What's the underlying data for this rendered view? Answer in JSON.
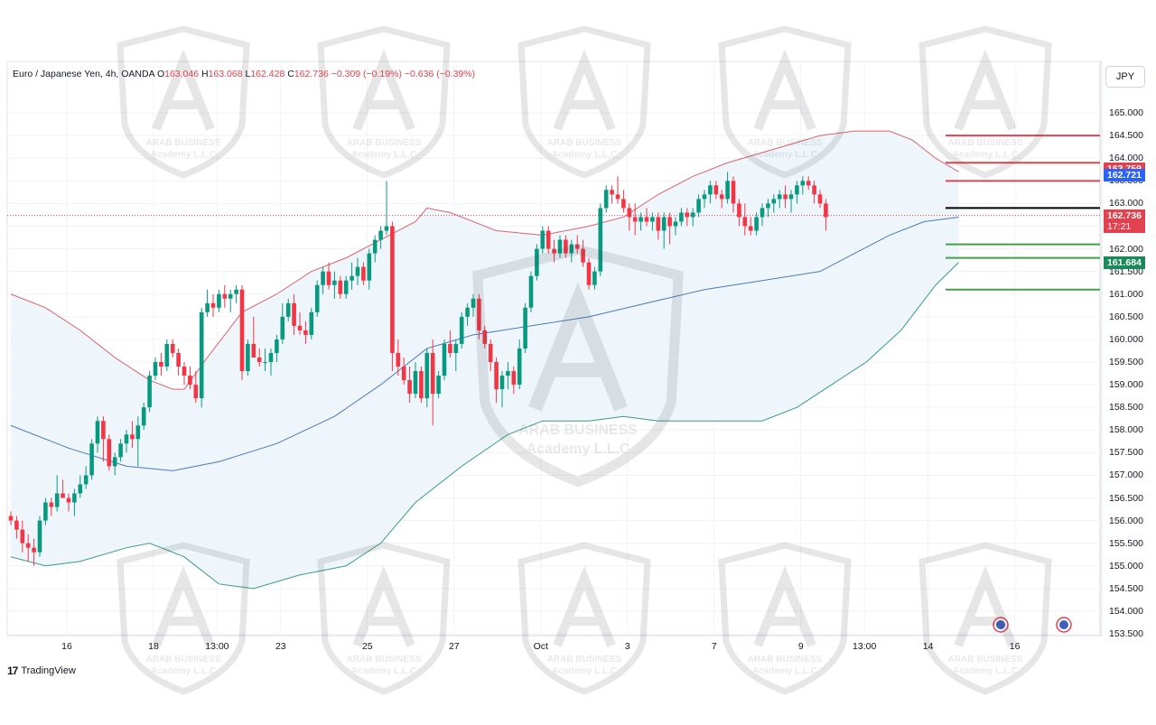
{
  "legend": {
    "symbol": "Euro / Japanese Yen, 4h, OANDA",
    "open_label": "O",
    "open": "163.046",
    "high_label": "H",
    "high": "163.068",
    "low_label": "L",
    "low": "162.428",
    "close_label": "C",
    "close": "162.736",
    "change": "−0.309 (−0.19%)",
    "change2": "−0.636 (−0.39%)"
  },
  "currency": "JPY",
  "watermark": {
    "line1": "ARAB BUSINESS",
    "line2": "Academy L.L.C"
  },
  "footer": {
    "brand": "TradingView",
    "brand_mark": "17"
  },
  "price_tags": {
    "resistance": {
      "value": "163.759",
      "color": "#e0434f"
    },
    "current": {
      "value": "162.736",
      "countdown": "17:21",
      "color": "#e0434f"
    },
    "middle_band": {
      "value": "162.721",
      "color": "#2962ff"
    },
    "support": {
      "value": "161.684",
      "color": "#1b8a5a"
    }
  },
  "colors": {
    "up": "#089981",
    "down": "#f23645",
    "upper_band": "#d9626d",
    "middle_band": "#4a78c2",
    "lower_band": "#3a9a86",
    "band_fill": "#eef6fc",
    "red_level": "#e0434f",
    "green_level": "#43a047",
    "black_level": "#000000"
  },
  "chart_data": {
    "type": "candlestick",
    "title": "Euro / Japanese Yen, 4h, OANDA",
    "ylabel": "JPY",
    "ylim": [
      153.5,
      165.5
    ],
    "y_ticks": [
      "165.000",
      "164.500",
      "164.000",
      "163.500",
      "163.000",
      "162.500",
      "162.000",
      "161.500",
      "161.000",
      "160.500",
      "160.000",
      "159.500",
      "159.000",
      "158.500",
      "158.000",
      "157.500",
      "157.000",
      "156.500",
      "156.000",
      "155.500",
      "155.000",
      "154.500",
      "154.000",
      "153.500"
    ],
    "x_ticks": [
      {
        "label": "16",
        "i": 5
      },
      {
        "label": "18",
        "i": 20
      },
      {
        "label": "13:00",
        "i": 31
      },
      {
        "label": "23",
        "i": 42
      },
      {
        "label": "25",
        "i": 57
      },
      {
        "label": "27",
        "i": 72
      },
      {
        "label": "Oct",
        "i": 87
      },
      {
        "label": "3",
        "i": 102
      },
      {
        "label": "7",
        "i": 117
      },
      {
        "label": "9",
        "i": 132
      },
      {
        "label": "13:00",
        "i": 143
      },
      {
        "label": "14",
        "i": 154
      },
      {
        "label": "16",
        "i": 169
      }
    ],
    "candles": [
      [
        156.1,
        156.2,
        155.9,
        156.0
      ],
      [
        156.0,
        156.1,
        155.6,
        155.8
      ],
      [
        155.8,
        156.0,
        155.3,
        155.5
      ],
      [
        155.5,
        155.7,
        155.1,
        155.4
      ],
      [
        155.4,
        155.6,
        155.0,
        155.3
      ],
      [
        155.3,
        156.1,
        155.2,
        156.0
      ],
      [
        156.0,
        156.5,
        155.9,
        156.4
      ],
      [
        156.4,
        156.5,
        156.1,
        156.3
      ],
      [
        156.3,
        157.0,
        156.2,
        156.6
      ],
      [
        156.6,
        156.9,
        156.5,
        156.5
      ],
      [
        156.5,
        156.6,
        156.2,
        156.4
      ],
      [
        156.4,
        156.7,
        156.1,
        156.6
      ],
      [
        156.6,
        157.0,
        156.5,
        156.8
      ],
      [
        156.8,
        157.2,
        156.7,
        157.0
      ],
      [
        157.0,
        157.8,
        156.9,
        157.7
      ],
      [
        157.7,
        158.3,
        157.5,
        158.2
      ],
      [
        158.2,
        158.3,
        157.3,
        157.8
      ],
      [
        157.8,
        157.9,
        157.1,
        157.2
      ],
      [
        157.2,
        157.5,
        157.0,
        157.4
      ],
      [
        157.4,
        157.8,
        157.3,
        157.7
      ],
      [
        157.7,
        158.0,
        157.5,
        157.9
      ],
      [
        157.9,
        158.2,
        157.6,
        157.8
      ],
      [
        157.8,
        158.3,
        157.2,
        158.1
      ],
      [
        158.1,
        158.6,
        158.0,
        158.5
      ],
      [
        158.5,
        159.3,
        158.4,
        159.2
      ],
      [
        159.2,
        159.6,
        159.1,
        159.5
      ],
      [
        159.5,
        159.7,
        159.2,
        159.4
      ],
      [
        159.4,
        160.0,
        159.3,
        159.9
      ],
      [
        159.9,
        160.0,
        159.6,
        159.7
      ],
      [
        159.7,
        159.8,
        159.2,
        159.4
      ],
      [
        159.4,
        159.5,
        159.0,
        159.2
      ],
      [
        159.2,
        159.4,
        158.9,
        159.0
      ],
      [
        159.0,
        159.3,
        158.6,
        158.7
      ],
      [
        158.7,
        160.7,
        158.5,
        160.6
      ],
      [
        160.6,
        161.1,
        160.5,
        160.8
      ],
      [
        160.8,
        161.0,
        160.5,
        160.7
      ],
      [
        160.7,
        161.1,
        160.6,
        161.0
      ],
      [
        161.0,
        161.2,
        160.7,
        160.9
      ],
      [
        160.9,
        161.1,
        160.6,
        161.0
      ],
      [
        161.0,
        161.2,
        160.8,
        161.1
      ],
      [
        161.1,
        161.2,
        159.1,
        159.3
      ],
      [
        159.3,
        160.0,
        159.2,
        159.9
      ],
      [
        159.9,
        160.5,
        159.7,
        159.6
      ],
      [
        159.6,
        159.8,
        159.4,
        159.5
      ],
      [
        159.5,
        159.8,
        159.3,
        159.5
      ],
      [
        159.5,
        159.8,
        159.2,
        159.7
      ],
      [
        159.7,
        160.1,
        159.5,
        160.0
      ],
      [
        160.0,
        160.8,
        159.9,
        160.5
      ],
      [
        160.5,
        160.9,
        160.4,
        160.8
      ],
      [
        160.8,
        161.0,
        160.1,
        160.3
      ],
      [
        160.3,
        160.6,
        160.1,
        160.2
      ],
      [
        160.2,
        160.4,
        159.9,
        160.1
      ],
      [
        160.1,
        160.7,
        160.0,
        160.6
      ],
      [
        160.6,
        161.3,
        160.5,
        161.2
      ],
      [
        161.2,
        161.6,
        161.0,
        161.5
      ],
      [
        161.5,
        161.7,
        161.1,
        161.2
      ],
      [
        161.2,
        161.5,
        160.9,
        161.3
      ],
      [
        161.3,
        161.4,
        160.9,
        161.0
      ],
      [
        161.0,
        161.4,
        160.9,
        161.3
      ],
      [
        161.3,
        161.7,
        161.1,
        161.4
      ],
      [
        161.4,
        161.8,
        161.2,
        161.6
      ],
      [
        161.6,
        161.7,
        161.2,
        161.3
      ],
      [
        161.3,
        162.0,
        161.1,
        161.9
      ],
      [
        161.9,
        162.3,
        161.7,
        162.2
      ],
      [
        162.2,
        162.5,
        162.0,
        162.4
      ],
      [
        162.4,
        163.5,
        162.3,
        162.5
      ],
      [
        162.5,
        162.6,
        159.3,
        159.7
      ],
      [
        159.7,
        160.0,
        159.2,
        159.4
      ],
      [
        159.4,
        159.6,
        159.0,
        159.1
      ],
      [
        159.1,
        159.4,
        158.6,
        158.8
      ],
      [
        158.8,
        159.5,
        158.7,
        159.3
      ],
      [
        159.3,
        159.4,
        158.6,
        158.7
      ],
      [
        158.7,
        159.8,
        158.5,
        159.7
      ],
      [
        159.7,
        160.0,
        158.1,
        158.8
      ],
      [
        158.8,
        159.3,
        158.7,
        159.2
      ],
      [
        159.2,
        160.0,
        159.1,
        159.9
      ],
      [
        159.9,
        160.2,
        159.6,
        159.7
      ],
      [
        159.7,
        160.0,
        159.3,
        159.9
      ],
      [
        159.9,
        160.6,
        159.8,
        160.5
      ],
      [
        160.5,
        160.8,
        160.3,
        160.7
      ],
      [
        160.7,
        161.0,
        160.5,
        160.9
      ],
      [
        160.9,
        161.0,
        160.0,
        160.2
      ],
      [
        160.2,
        160.3,
        159.8,
        159.9
      ],
      [
        159.9,
        160.0,
        159.3,
        159.5
      ],
      [
        159.5,
        159.6,
        158.6,
        158.9
      ],
      [
        158.9,
        159.3,
        158.5,
        159.2
      ],
      [
        159.2,
        159.5,
        158.9,
        159.3
      ],
      [
        159.3,
        159.4,
        158.8,
        159.0
      ],
      [
        159.0,
        160.0,
        158.9,
        159.8
      ],
      [
        159.8,
        160.8,
        159.7,
        160.7
      ],
      [
        160.7,
        161.5,
        160.6,
        161.4
      ],
      [
        161.4,
        162.1,
        161.3,
        162.0
      ],
      [
        162.0,
        162.5,
        161.9,
        162.4
      ],
      [
        162.4,
        162.5,
        161.9,
        162.0
      ],
      [
        162.0,
        162.2,
        161.7,
        161.9
      ],
      [
        161.9,
        162.3,
        161.8,
        162.2
      ],
      [
        162.2,
        162.3,
        161.8,
        161.9
      ],
      [
        161.9,
        162.2,
        161.7,
        162.1
      ],
      [
        162.1,
        162.3,
        161.9,
        162.0
      ],
      [
        162.0,
        162.2,
        161.6,
        161.7
      ],
      [
        161.7,
        161.8,
        161.1,
        161.2
      ],
      [
        161.2,
        161.6,
        161.1,
        161.5
      ],
      [
        161.5,
        163.0,
        161.4,
        162.9
      ],
      [
        162.9,
        163.4,
        162.8,
        163.3
      ],
      [
        163.3,
        163.4,
        163.0,
        163.2
      ],
      [
        163.2,
        163.6,
        163.0,
        163.1
      ],
      [
        163.1,
        163.3,
        162.8,
        162.9
      ],
      [
        162.9,
        163.0,
        162.4,
        162.7
      ],
      [
        162.7,
        163.0,
        162.3,
        162.6
      ],
      [
        162.6,
        162.8,
        162.4,
        162.7
      ],
      [
        162.7,
        162.9,
        162.5,
        162.6
      ],
      [
        162.6,
        162.8,
        162.4,
        162.7
      ],
      [
        162.7,
        162.8,
        162.2,
        162.4
      ],
      [
        162.4,
        162.8,
        162.0,
        162.7
      ],
      [
        162.7,
        162.8,
        162.1,
        162.5
      ],
      [
        162.5,
        162.7,
        162.3,
        162.6
      ],
      [
        162.6,
        162.9,
        162.5,
        162.8
      ],
      [
        162.8,
        162.9,
        162.5,
        162.7
      ],
      [
        162.7,
        162.9,
        162.5,
        162.8
      ],
      [
        162.8,
        163.2,
        162.7,
        163.1
      ],
      [
        163.1,
        163.3,
        162.9,
        163.2
      ],
      [
        163.2,
        163.5,
        163.0,
        163.4
      ],
      [
        163.4,
        163.5,
        163.1,
        163.2
      ],
      [
        163.2,
        163.3,
        162.9,
        163.1
      ],
      [
        163.1,
        163.7,
        163.0,
        163.5
      ],
      [
        163.5,
        163.6,
        162.8,
        163.0
      ],
      [
        163.0,
        163.1,
        162.5,
        162.7
      ],
      [
        162.7,
        163.0,
        162.3,
        162.5
      ],
      [
        162.5,
        162.7,
        162.3,
        162.4
      ],
      [
        162.4,
        162.8,
        162.3,
        162.7
      ],
      [
        162.7,
        163.0,
        162.5,
        162.9
      ],
      [
        162.9,
        163.1,
        162.7,
        163.0
      ],
      [
        163.0,
        163.2,
        162.8,
        163.1
      ],
      [
        163.1,
        163.3,
        162.9,
        163.2
      ],
      [
        163.2,
        163.4,
        162.9,
        163.1
      ],
      [
        163.1,
        163.3,
        162.8,
        163.2
      ],
      [
        163.2,
        163.5,
        163.0,
        163.4
      ],
      [
        163.4,
        163.6,
        163.2,
        163.5
      ],
      [
        163.5,
        163.6,
        163.3,
        163.4
      ],
      [
        163.4,
        163.5,
        163.0,
        163.2
      ],
      [
        163.2,
        163.3,
        162.9,
        163.0
      ],
      [
        163.0,
        163.1,
        162.4,
        162.7
      ]
    ],
    "bollinger": {
      "upper": [
        [
          0,
          161.0
        ],
        [
          6,
          160.7
        ],
        [
          12,
          160.2
        ],
        [
          18,
          159.6
        ],
        [
          24,
          159.1
        ],
        [
          28,
          158.9
        ],
        [
          30,
          158.9
        ],
        [
          34,
          159.6
        ],
        [
          40,
          160.6
        ],
        [
          46,
          161.0
        ],
        [
          52,
          161.5
        ],
        [
          58,
          161.8
        ],
        [
          64,
          162.2
        ],
        [
          70,
          162.6
        ],
        [
          72,
          162.9
        ],
        [
          76,
          162.8
        ],
        [
          84,
          162.4
        ],
        [
          92,
          162.3
        ],
        [
          100,
          162.5
        ],
        [
          106,
          162.7
        ],
        [
          112,
          163.2
        ],
        [
          118,
          163.6
        ],
        [
          124,
          163.9
        ],
        [
          132,
          164.2
        ],
        [
          140,
          164.5
        ],
        [
          146,
          164.6
        ],
        [
          152,
          164.6
        ],
        [
          156,
          164.4
        ],
        [
          160,
          164.0
        ],
        [
          164,
          163.7
        ]
      ],
      "middle": [
        [
          0,
          158.1
        ],
        [
          10,
          157.6
        ],
        [
          20,
          157.2
        ],
        [
          28,
          157.1
        ],
        [
          36,
          157.3
        ],
        [
          46,
          157.7
        ],
        [
          56,
          158.3
        ],
        [
          64,
          159.0
        ],
        [
          72,
          159.8
        ],
        [
          80,
          160.1
        ],
        [
          90,
          160.3
        ],
        [
          100,
          160.5
        ],
        [
          110,
          160.8
        ],
        [
          120,
          161.1
        ],
        [
          130,
          161.3
        ],
        [
          140,
          161.5
        ],
        [
          146,
          161.9
        ],
        [
          152,
          162.3
        ],
        [
          158,
          162.6
        ],
        [
          164,
          162.7
        ]
      ],
      "lower": [
        [
          0,
          155.2
        ],
        [
          6,
          155.0
        ],
        [
          12,
          155.1
        ],
        [
          20,
          155.4
        ],
        [
          24,
          155.5
        ],
        [
          30,
          155.2
        ],
        [
          36,
          154.6
        ],
        [
          42,
          154.5
        ],
        [
          50,
          154.8
        ],
        [
          58,
          155.0
        ],
        [
          64,
          155.5
        ],
        [
          70,
          156.4
        ],
        [
          78,
          157.2
        ],
        [
          86,
          157.9
        ],
        [
          92,
          158.2
        ],
        [
          100,
          158.2
        ],
        [
          106,
          158.3
        ],
        [
          112,
          158.2
        ],
        [
          118,
          158.2
        ],
        [
          124,
          158.2
        ],
        [
          130,
          158.2
        ],
        [
          136,
          158.5
        ],
        [
          142,
          159.0
        ],
        [
          148,
          159.5
        ],
        [
          154,
          160.2
        ],
        [
          160,
          161.2
        ],
        [
          164,
          161.7
        ]
      ]
    },
    "levels": [
      {
        "price": 164.5,
        "kind": "red",
        "x_start_i": 150
      },
      {
        "price": 163.9,
        "kind": "red",
        "x_start_i": 150
      },
      {
        "price": 163.5,
        "kind": "red",
        "x_start_i": 150
      },
      {
        "price": 162.9,
        "kind": "black",
        "x_start_i": 150
      },
      {
        "price": 162.1,
        "kind": "green",
        "x_start_i": 150
      },
      {
        "price": 161.8,
        "kind": "green",
        "x_start_i": 150
      },
      {
        "price": 161.1,
        "kind": "green",
        "x_start_i": 150
      }
    ],
    "current_price": 162.736
  }
}
